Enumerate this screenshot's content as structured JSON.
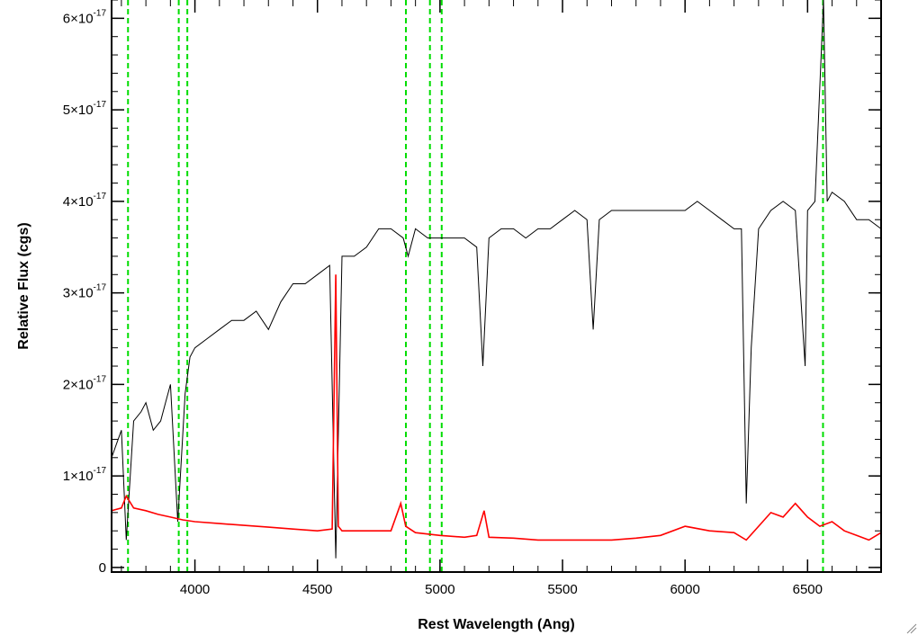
{
  "chart_data": {
    "type": "line",
    "title": "",
    "xlabel": "Rest Wavelength (Ang)",
    "ylabel": "Relative Flux (cgs)",
    "xlim": [
      3660,
      6800
    ],
    "ylim": [
      -5e-19,
      6.2e-17
    ],
    "grid": false,
    "x_ticks": [
      {
        "value": 4000,
        "label": "4000"
      },
      {
        "value": 4500,
        "label": "4500"
      },
      {
        "value": 5000,
        "label": "5000"
      },
      {
        "value": 5500,
        "label": "5500"
      },
      {
        "value": 6000,
        "label": "6000"
      },
      {
        "value": 6500,
        "label": "6500"
      }
    ],
    "y_ticks": [
      {
        "value": 0,
        "mantissa": "0",
        "exponent": ""
      },
      {
        "value": 1e-17,
        "mantissa": "1×10",
        "exponent": "-17"
      },
      {
        "value": 2e-17,
        "mantissa": "2×10",
        "exponent": "-17"
      },
      {
        "value": 3e-17,
        "mantissa": "3×10",
        "exponent": "-17"
      },
      {
        "value": 4e-17,
        "mantissa": "4×10",
        "exponent": "-17"
      },
      {
        "value": 5e-17,
        "mantissa": "5×10",
        "exponent": "-17"
      },
      {
        "value": 6e-17,
        "mantissa": "6×10",
        "exponent": "-17"
      }
    ],
    "reference_lines": {
      "color": "#00dd00",
      "style": "dashed",
      "x": [
        3727,
        3934,
        3969,
        4861,
        4959,
        5007,
        6563
      ]
    },
    "series": [
      {
        "color": "#000000",
        "x": [
          3660,
          3700,
          3720,
          3750,
          3780,
          3800,
          3830,
          3860,
          3880,
          3900,
          3930,
          3960,
          3980,
          4000,
          4050,
          4100,
          4150,
          4200,
          4250,
          4300,
          4350,
          4400,
          4450,
          4500,
          4550,
          4575,
          4600,
          4650,
          4700,
          4750,
          4800,
          4850,
          4870,
          4900,
          4950,
          5000,
          5050,
          5100,
          5150,
          5175,
          5200,
          5250,
          5300,
          5350,
          5400,
          5450,
          5500,
          5550,
          5600,
          5625,
          5650,
          5700,
          5750,
          5800,
          5850,
          5900,
          5950,
          6000,
          6050,
          6100,
          6150,
          6200,
          6230,
          6250,
          6270,
          6300,
          6350,
          6400,
          6450,
          6490,
          6500,
          6530,
          6565,
          6580,
          6600,
          6650,
          6700,
          6750,
          6800
        ],
        "y": [
          1.2e-17,
          1.5e-17,
          3e-18,
          1.6e-17,
          1.7e-17,
          1.8e-17,
          1.5e-17,
          1.6e-17,
          1.8e-17,
          2e-17,
          5e-18,
          1.9e-17,
          2.3e-17,
          2.4e-17,
          2.5e-17,
          2.6e-17,
          2.7e-17,
          2.7e-17,
          2.8e-17,
          2.6e-17,
          2.9e-17,
          3.1e-17,
          3.1e-17,
          3.2e-17,
          3.3e-17,
          1e-18,
          3.4e-17,
          3.4e-17,
          3.5e-17,
          3.7e-17,
          3.7e-17,
          3.6e-17,
          3.4e-17,
          3.7e-17,
          3.6e-17,
          3.6e-17,
          3.6e-17,
          3.6e-17,
          3.5e-17,
          2.2e-17,
          3.6e-17,
          3.7e-17,
          3.7e-17,
          3.6e-17,
          3.7e-17,
          3.7e-17,
          3.8e-17,
          3.9e-17,
          3.8e-17,
          2.6e-17,
          3.8e-17,
          3.9e-17,
          3.9e-17,
          3.9e-17,
          3.9e-17,
          3.9e-17,
          3.9e-17,
          3.9e-17,
          4e-17,
          3.9e-17,
          3.8e-17,
          3.7e-17,
          3.7e-17,
          7e-18,
          2.4e-17,
          3.7e-17,
          3.9e-17,
          4e-17,
          3.9e-17,
          2.2e-17,
          3.9e-17,
          4e-17,
          6.2e-17,
          4e-17,
          4.1e-17,
          4e-17,
          3.8e-17,
          3.8e-17,
          3.7e-17
        ]
      },
      {
        "color": "#ff0000",
        "x": [
          3660,
          3700,
          3720,
          3750,
          3800,
          3850,
          3900,
          3950,
          4000,
          4100,
          4200,
          4300,
          4400,
          4500,
          4560,
          4575,
          4585,
          4600,
          4700,
          4800,
          4840,
          4860,
          4900,
          5000,
          5100,
          5150,
          5180,
          5200,
          5300,
          5400,
          5500,
          5600,
          5700,
          5800,
          5900,
          6000,
          6100,
          6200,
          6250,
          6300,
          6350,
          6400,
          6450,
          6500,
          6550,
          6600,
          6650,
          6700,
          6750,
          6800
        ],
        "y": [
          6.2e-18,
          6.5e-18,
          7.8e-18,
          6.5e-18,
          6.2e-18,
          5.8e-18,
          5.5e-18,
          5.2e-18,
          5e-18,
          4.8e-18,
          4.6e-18,
          4.4e-18,
          4.2e-18,
          4e-18,
          4.2e-18,
          3.2e-17,
          4.5e-18,
          4e-18,
          4e-18,
          4e-18,
          7e-18,
          4.5e-18,
          3.8e-18,
          3.5e-18,
          3.3e-18,
          3.5e-18,
          6.2e-18,
          3.3e-18,
          3.2e-18,
          3e-18,
          3e-18,
          3e-18,
          3e-18,
          3.2e-18,
          3.5e-18,
          4.5e-18,
          4e-18,
          3.8e-18,
          3e-18,
          4.5e-18,
          6e-18,
          5.5e-18,
          7e-18,
          5.5e-18,
          4.5e-18,
          5e-18,
          4e-18,
          3.5e-18,
          3e-18,
          3.8e-18
        ]
      }
    ]
  }
}
